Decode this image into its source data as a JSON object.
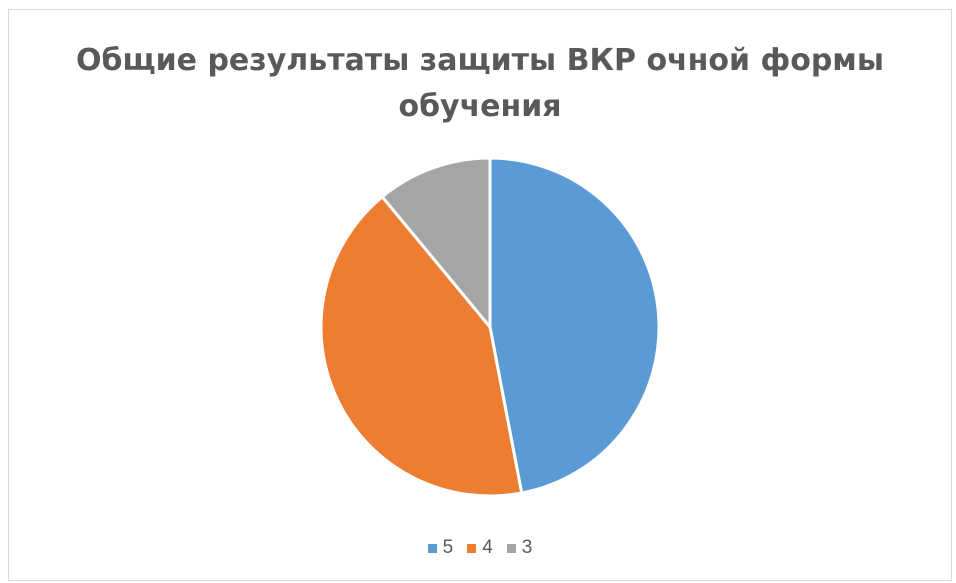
{
  "chart_data": {
    "type": "pie",
    "title_lines": [
      "Общие результаты защиты ВКР очной формы",
      "обучения"
    ],
    "categories": [
      "5",
      "4",
      "3"
    ],
    "values": [
      47,
      42,
      11
    ],
    "colors": [
      "#5b9bd5",
      "#ed7d31",
      "#a5a5a5"
    ],
    "legend_position": "bottom"
  }
}
